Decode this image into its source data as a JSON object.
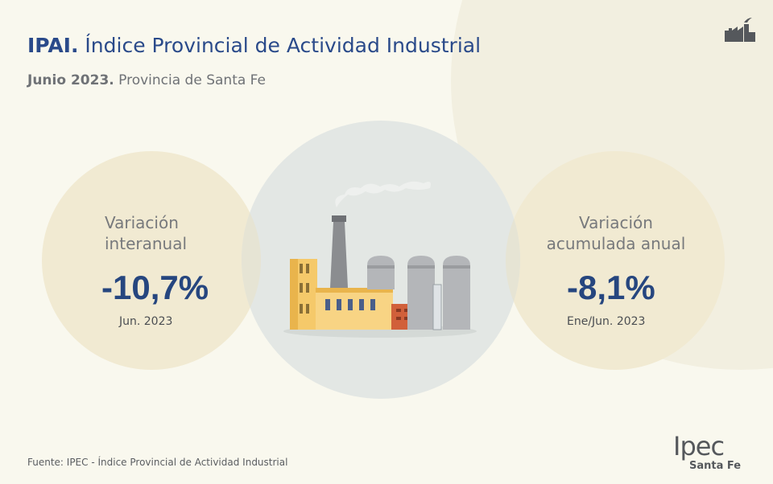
{
  "header": {
    "title_bold": "IPAI.",
    "title_rest": " Índice Provincial de Actividad Industrial",
    "subtitle_bold": "Junio 2023.",
    "subtitle_rest": " Provincia de Santa Fe"
  },
  "left_card": {
    "label_line1": "Variación",
    "label_line2": "interanual",
    "value": "-10,7%",
    "period": "Jun. 2023"
  },
  "right_card": {
    "label_line1": "Variación",
    "label_line2": "acumulada anual",
    "value": "-8,1%",
    "period": "Ene/Jun. 2023"
  },
  "footer": {
    "source": "Fuente: IPEC - Índice Provincial de Actividad Industrial"
  },
  "logo": {
    "word": "Ipec",
    "sub": "Santa Fe"
  },
  "icons": {
    "corner": "factory-icon",
    "center": "factory-illustration"
  },
  "colors": {
    "title": "#2a4a8a",
    "value": "#26467f",
    "side_circle": "#f1ead2",
    "center_circle": "#e3e7e4"
  }
}
